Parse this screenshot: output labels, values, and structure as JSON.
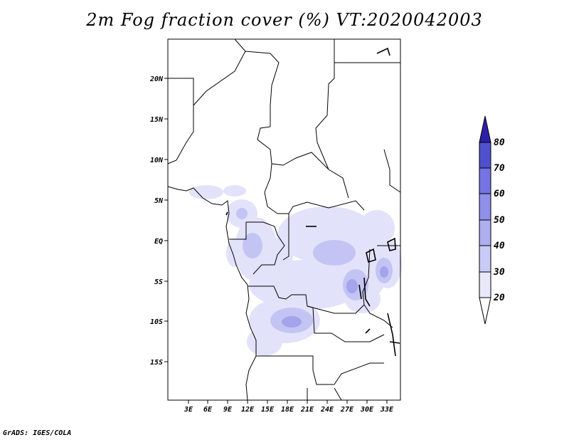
{
  "title": "2m Fog fraction cover (%) VT:2020042003",
  "credit": "GrADS: IGES/COLA",
  "map": {
    "lat_ticks": [
      "20N",
      "15N",
      "10N",
      "5N",
      "EQ",
      "5S",
      "10S",
      "15S"
    ],
    "lon_ticks": [
      "3E",
      "6E",
      "9E",
      "12E",
      "15E",
      "18E",
      "21E",
      "24E",
      "27E",
      "30E",
      "33E"
    ]
  },
  "colorbar": {
    "levels": [
      "20",
      "30",
      "40",
      "50",
      "60",
      "70",
      "80"
    ],
    "colors": [
      "#e8e8fb",
      "#cacaf6",
      "#aeaef1",
      "#9090ea",
      "#7474e2",
      "#5050cf",
      "#2e20a8"
    ]
  },
  "fog_color_low": "#e2e2fa",
  "fog_color_mid": "#c4c4f4",
  "fog_color_high": "#a4a4ec"
}
